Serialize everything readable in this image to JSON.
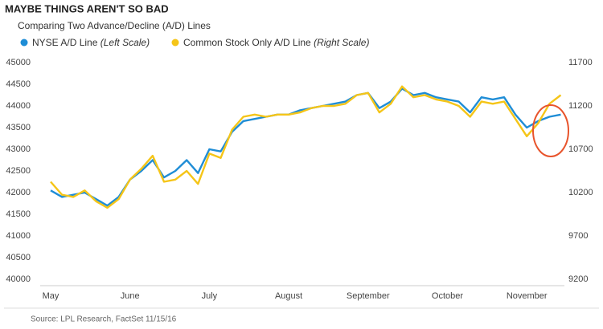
{
  "chart_data": {
    "type": "line",
    "title": "MAYBE THINGS AREN'T SO BAD",
    "subtitle": "Comparing Two Advance/Decline (A/D) Lines",
    "source": "Source: LPL Research, FactSet 11/15/16",
    "categories": [
      "May",
      null,
      null,
      null,
      null,
      null,
      null,
      "June",
      null,
      null,
      null,
      null,
      null,
      null,
      "July",
      null,
      null,
      null,
      null,
      null,
      null,
      "August",
      null,
      null,
      null,
      null,
      null,
      null,
      "September",
      null,
      null,
      null,
      null,
      null,
      null,
      "October",
      null,
      null,
      null,
      null,
      null,
      null,
      "November",
      null,
      null,
      null
    ],
    "ylim": [
      40000,
      45000
    ],
    "yticks": [
      40000,
      40500,
      41000,
      41500,
      42000,
      42500,
      43000,
      43500,
      44000,
      44500,
      45000
    ],
    "y2lim": [
      9200,
      11700
    ],
    "y2ticks": [
      9200,
      9700,
      10200,
      10700,
      11200,
      11700
    ],
    "series": [
      {
        "name": "NYSE A/D Line (Left Scale)",
        "color": "#1f8dd6",
        "axis": "y",
        "values": [
          42050,
          41900,
          41950,
          42000,
          41850,
          41700,
          41900,
          42300,
          42500,
          42750,
          42350,
          42500,
          42750,
          42450,
          43000,
          42950,
          43400,
          43650,
          43700,
          43750,
          43800,
          43800,
          43900,
          43950,
          44000,
          44050,
          44100,
          44250,
          44300,
          43950,
          44100,
          44400,
          44250,
          44300,
          44200,
          44150,
          44100,
          43850,
          44200,
          44150,
          44200,
          43800,
          43500,
          43650,
          43750,
          43800
        ]
      },
      {
        "name": "Common Stock Only A/D Line (Right Scale)",
        "color": "#f5c518",
        "axis": "y2",
        "values": [
          10325,
          10175,
          10150,
          10225,
          10100,
          10025,
          10125,
          10350,
          10475,
          10625,
          10325,
          10350,
          10450,
          10300,
          10650,
          10600,
          10925,
          11075,
          11100,
          11075,
          11100,
          11100,
          11125,
          11175,
          11200,
          11200,
          11225,
          11325,
          11350,
          11125,
          11225,
          11425,
          11300,
          11325,
          11275,
          11250,
          11200,
          11075,
          11250,
          11225,
          11250,
          11050,
          10850,
          11000,
          11225,
          11325
        ]
      }
    ]
  }
}
